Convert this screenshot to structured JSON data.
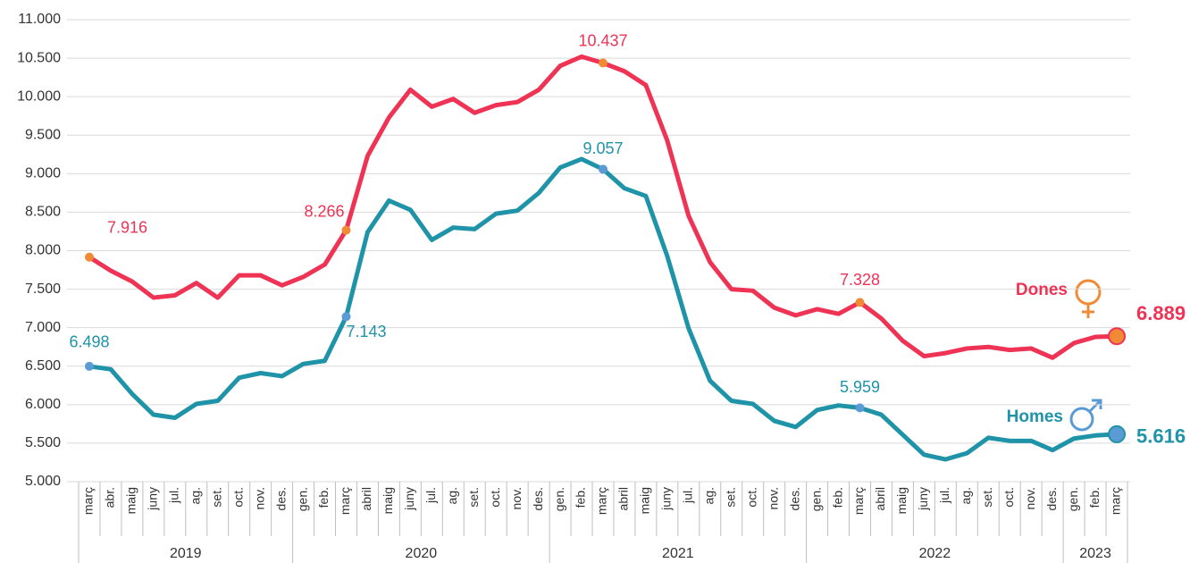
{
  "chart_data": {
    "type": "line",
    "groups": [
      {
        "label": "2019",
        "categories": [
          "març",
          "abr.",
          "maig",
          "juny",
          "jul.",
          "ag.",
          "set.",
          "oct.",
          "nov.",
          "des."
        ]
      },
      {
        "label": "2020",
        "categories": [
          "gen.",
          "feb.",
          "març",
          "abril",
          "maig",
          "juny",
          "jul.",
          "ag.",
          "set.",
          "oct.",
          "nov.",
          "des."
        ]
      },
      {
        "label": "2021",
        "categories": [
          "gen.",
          "feb.",
          "març",
          "abril",
          "maig",
          "juny",
          "jul.",
          "ag.",
          "set.",
          "oct.",
          "nov.",
          "des."
        ]
      },
      {
        "label": "2022",
        "categories": [
          "gen.",
          "feb.",
          "març",
          "abril",
          "maig",
          "juny",
          "jul.",
          "ag.",
          "set.",
          "oct.",
          "nov.",
          "des."
        ]
      },
      {
        "label": "2023",
        "categories": [
          "gen.",
          "feb.",
          "març"
        ]
      }
    ],
    "series": [
      {
        "name": "Dones",
        "color": "#ee3355",
        "marker_color": "#f08a35",
        "values": [
          7916,
          7740,
          7600,
          7390,
          7420,
          7580,
          7390,
          7680,
          7680,
          7550,
          7660,
          7820,
          8266,
          9230,
          9730,
          10090,
          9870,
          9970,
          9790,
          9890,
          9930,
          10090,
          10400,
          10520,
          10437,
          10330,
          10150,
          9430,
          8450,
          7850,
          7500,
          7480,
          7260,
          7160,
          7240,
          7180,
          7328,
          7120,
          6830,
          6630,
          6670,
          6730,
          6750,
          6710,
          6730,
          6610,
          6800,
          6880,
          6889
        ],
        "value_labels": [
          "7.916",
          null,
          null,
          null,
          null,
          null,
          null,
          null,
          null,
          null,
          null,
          null,
          "8.266",
          null,
          null,
          null,
          null,
          null,
          null,
          null,
          null,
          null,
          null,
          null,
          "10.437",
          null,
          null,
          null,
          null,
          null,
          null,
          null,
          null,
          null,
          null,
          null,
          "7.328",
          null,
          null,
          null,
          null,
          null,
          null,
          null,
          null,
          null,
          null,
          null,
          "6.889"
        ]
      },
      {
        "name": "Homes",
        "color": "#1f93a8",
        "marker_color": "#5b9bd5",
        "values": [
          6498,
          6460,
          6140,
          5870,
          5830,
          6010,
          6050,
          6350,
          6410,
          6370,
          6530,
          6570,
          7143,
          8240,
          8650,
          8530,
          8140,
          8300,
          8280,
          8480,
          8520,
          8750,
          9080,
          9190,
          9057,
          8810,
          8710,
          7930,
          6990,
          6310,
          6050,
          6010,
          5790,
          5710,
          5930,
          5990,
          5959,
          5870,
          5610,
          5350,
          5290,
          5370,
          5570,
          5530,
          5530,
          5410,
          5560,
          5600,
          5616
        ],
        "value_labels": [
          "6.498",
          null,
          null,
          null,
          null,
          null,
          null,
          null,
          null,
          null,
          null,
          null,
          "7.143",
          null,
          null,
          null,
          null,
          null,
          null,
          null,
          null,
          null,
          null,
          null,
          "9.057",
          null,
          null,
          null,
          null,
          null,
          null,
          null,
          null,
          null,
          null,
          null,
          "5.959",
          null,
          null,
          null,
          null,
          null,
          null,
          null,
          null,
          null,
          null,
          null,
          "5.616"
        ]
      }
    ],
    "ylim": [
      5000,
      11000
    ],
    "yticks": [
      {
        "value": 5000,
        "label": "5.000"
      },
      {
        "value": 5500,
        "label": "5.500"
      },
      {
        "value": 6000,
        "label": "6.000"
      },
      {
        "value": 6500,
        "label": "6.500"
      },
      {
        "value": 7000,
        "label": "7.000"
      },
      {
        "value": 7500,
        "label": "7.500"
      },
      {
        "value": 8000,
        "label": "8.000"
      },
      {
        "value": 8500,
        "label": "8.500"
      },
      {
        "value": 9000,
        "label": "9.000"
      },
      {
        "value": 9500,
        "label": "9.500"
      },
      {
        "value": 10000,
        "label": "10.000"
      },
      {
        "value": 10500,
        "label": "10.500"
      },
      {
        "value": 11000,
        "label": "11.000"
      }
    ],
    "grid": true
  }
}
